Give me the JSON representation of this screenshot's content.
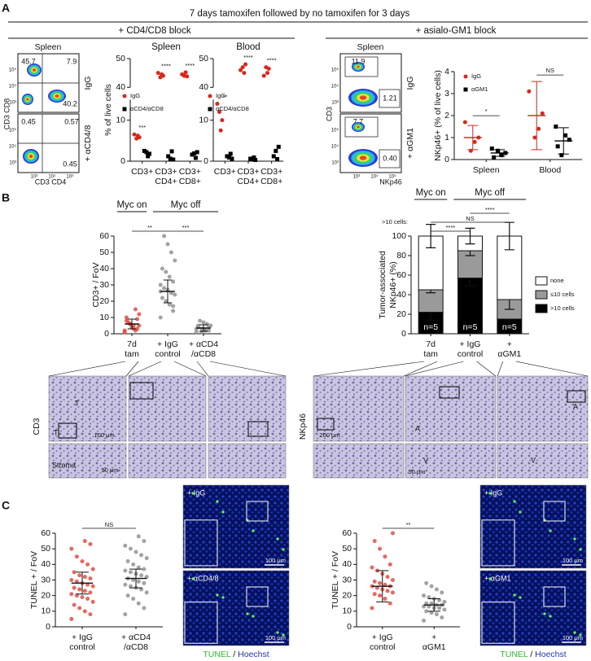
{
  "figure": {
    "panel_labels": [
      "A",
      "B",
      "C"
    ],
    "A": {
      "title": "7 days tamoxifen followed by no tamoxifen for 3 days",
      "left_heading": "+ CD4/CD8 block",
      "right_heading": "+ asialo-GM1 block",
      "flow_left": {
        "tissue": "Spleen",
        "ylabel": "CD3 CD8",
        "xlabel": "CD3 CD4",
        "ticks": [
          "10³",
          "10⁴",
          "10⁵"
        ],
        "rows": [
          {
            "label": "IgG",
            "gates": [
              "45.7",
              "7.9",
              "40.2"
            ]
          },
          {
            "label": "+ αCD4/8",
            "gates": [
              "0.45",
              "0.57",
              "0.45"
            ]
          }
        ]
      },
      "flow_right": {
        "tissue": "Spleen",
        "ylabel": "CD3",
        "xlabel": "NKp46",
        "ticks": [
          "10³",
          "10⁴",
          "10⁵"
        ],
        "rows": [
          {
            "label": "IgG",
            "gates": [
              "11.9",
              "1.21"
            ]
          },
          {
            "label": "+ αGM1",
            "gates": [
              "7.7",
              "0.40"
            ]
          }
        ]
      }
    },
    "B": {
      "images_left": {
        "stain": "CD3",
        "scales": [
          "100 μm",
          "50 μm"
        ],
        "marks": [
          "T",
          "T",
          "Stroma"
        ]
      },
      "images_right": {
        "stain": "NKp46",
        "scales": [
          "200 μm",
          "50 μm"
        ],
        "marks": [
          "A",
          "A",
          "V",
          "V"
        ]
      }
    },
    "C": {
      "images_left": {
        "conditions": [
          "+ IgG",
          "+ αCD4/8"
        ],
        "scales": [
          "100 μm",
          "100 μm"
        ]
      },
      "images_right": {
        "conditions": [
          "+ IgG",
          "+ αGM1"
        ],
        "scales": [
          "100 μm",
          "100 μm"
        ]
      },
      "stain_legend": [
        "TUNEL",
        "/",
        "Hoechst"
      ]
    }
  },
  "chart_data": [
    {
      "type": "dotplot",
      "title": "Spleen",
      "ylabel": "% of live cells",
      "categories": [
        [
          "CD3+"
        ],
        [
          "CD3+",
          "CD4+"
        ],
        [
          "CD3+",
          "CD8+"
        ]
      ],
      "segments": [
        {
          "ylim": [
            0,
            15
          ],
          "yticks": [
            0,
            10
          ]
        },
        {
          "ylim": [
            40,
            50
          ],
          "yticks": [
            40,
            50
          ]
        }
      ],
      "series": [
        {
          "name": "IgG",
          "color": "#d8281e",
          "marker": "circle",
          "values": [
            [
              6.5,
              5.8,
              6.2,
              5.5
            ],
            [
              45,
              44,
              44.5,
              43.5
            ],
            [
              44.5,
              43.8,
              45.2,
              44
            ]
          ]
        },
        {
          "name": "αCD4/αCD8",
          "color": "#000000",
          "marker": "square",
          "values": [
            [
              2.5,
              1.8,
              1.2,
              2.2
            ],
            [
              1.2,
              0.4,
              2.4,
              0.6
            ],
            [
              1.6,
              2.2,
              0.8,
              1.9
            ]
          ]
        }
      ],
      "significance": [
        "***",
        "****",
        "****"
      ]
    },
    {
      "type": "dotplot",
      "title": "Blood",
      "categories": [
        [
          "CD3+"
        ],
        [
          "CD3+",
          "CD4+"
        ],
        [
          "CD3+",
          "CD8+"
        ]
      ],
      "segments": [
        {
          "ylim": [
            0,
            15
          ],
          "yticks": [
            0,
            10
          ]
        },
        {
          "ylim": [
            40,
            50
          ],
          "yticks": [
            40,
            50
          ]
        }
      ],
      "series": [
        {
          "name": "IgG",
          "color": "#d8281e",
          "marker": "circle",
          "values": [
            [
              14,
              10,
              7.5,
              12
            ],
            [
              46,
              48,
              45,
              47
            ],
            [
              44,
              46.5,
              45,
              47
            ]
          ]
        },
        {
          "name": "αCD4/αCD8",
          "color": "#000000",
          "marker": "square",
          "values": [
            [
              1.2,
              0.6,
              1.8,
              0.9
            ],
            [
              0.6,
              0.3,
              0.9,
              0.5
            ],
            [
              1.2,
              3.5,
              0.5,
              2.5
            ]
          ]
        }
      ],
      "significance": [
        "**",
        "****",
        "****"
      ]
    },
    {
      "type": "dotplot",
      "ylabel": "NKp46+ (% of live cells)",
      "categories": [
        [
          "Spleen"
        ],
        [
          "Blood"
        ]
      ],
      "ylim": [
        0,
        4
      ],
      "yticks": [
        0,
        1,
        2,
        3,
        4
      ],
      "series": [
        {
          "name": "IgG",
          "color": "#d8281e",
          "marker": "circle",
          "values": [
            [
              1.7,
              1.0,
              0.8,
              0.4
            ],
            [
              3.1,
              2.1,
              1.4,
              1.0
            ]
          ],
          "means": [
            1.0,
            2.0
          ],
          "errors": [
            0.55,
            1.55
          ]
        },
        {
          "name": "αGM1",
          "color": "#000000",
          "marker": "square",
          "values": [
            [
              0.5,
              0.3,
              0.2,
              0.4,
              0.1
            ],
            [
              1.5,
              0.9,
              1.1,
              0.2,
              0.6
            ]
          ],
          "means": [
            0.3,
            0.85
          ],
          "errors": [
            0.15,
            0.6
          ]
        }
      ],
      "significance": [
        "*",
        "NS"
      ]
    },
    {
      "type": "dotplot",
      "ylabel": "CD3+ / FoV",
      "headers": [
        "Myc on",
        "Myc off"
      ],
      "categories": [
        [
          "7d",
          "tam"
        ],
        [
          "+ IgG",
          "control"
        ],
        [
          "+ αCD4",
          "/αCD8"
        ]
      ],
      "ylim": [
        0,
        60
      ],
      "yticks": [
        0,
        10,
        20,
        30,
        40,
        50,
        60
      ],
      "colors": [
        "#e0433a",
        "#8c8c8c",
        "#8c8c8c"
      ],
      "values": [
        [
          2,
          3,
          5,
          6,
          8,
          12,
          15,
          4,
          7,
          1,
          9,
          3,
          6,
          10,
          5,
          2
        ],
        [
          10,
          14,
          18,
          20,
          22,
          24,
          25,
          27,
          28,
          30,
          32,
          35,
          38,
          40,
          45,
          50,
          55,
          60,
          26,
          17
        ],
        [
          1,
          2,
          2,
          3,
          4,
          5,
          6,
          7,
          8,
          3,
          4,
          2,
          1,
          5
        ]
      ],
      "means": [
        6,
        26,
        3.5
      ],
      "errors": [
        3,
        7,
        2
      ],
      "significance": [
        "**",
        "***"
      ]
    },
    {
      "type": "stacked_bar",
      "ylabel": [
        "Tumor-associated",
        "NKp46+ (%)"
      ],
      "headers": [
        "Myc on",
        "Myc off"
      ],
      "categories": [
        [
          "7d",
          "tam"
        ],
        [
          "+ IgG",
          "control"
        ],
        [
          "+",
          "αGM1"
        ]
      ],
      "ylim": [
        0,
        100
      ],
      "yticks": [
        0,
        20,
        40,
        60,
        80,
        100
      ],
      "series": [
        {
          "name": ">10 cells",
          "color": "#000000",
          "values": [
            22,
            57,
            15
          ],
          "errors": [
            8,
            8,
            7
          ]
        },
        {
          "name": "≤10 cells",
          "color": "#9a9a9a",
          "values": [
            23,
            28,
            20
          ],
          "errors": [
            3,
            5,
            10
          ]
        },
        {
          "name": "none",
          "color": "#ffffff",
          "values": [
            55,
            15,
            65
          ],
          "errors": [
            12,
            8,
            14
          ]
        }
      ],
      "bar_labels": [
        "n=5",
        "n=5",
        "n=5"
      ],
      "significance_label": ">10 cells:",
      "significance": [
        "****",
        "NS",
        "****"
      ]
    },
    {
      "type": "dotplot",
      "ylabel": "TUNEL + / FoV",
      "categories": [
        [
          "+ IgG",
          "control"
        ],
        [
          "+ αCD4",
          "/αCD8"
        ]
      ],
      "ylim": [
        0,
        60
      ],
      "yticks": [
        0,
        10,
        20,
        30,
        40,
        50,
        60
      ],
      "colors": [
        "#e0433a",
        "#8c8c8c"
      ],
      "values": [
        [
          5,
          8,
          10,
          12,
          14,
          16,
          18,
          19,
          20,
          21,
          22,
          23,
          24,
          25,
          26,
          27,
          28,
          29,
          30,
          31,
          32,
          33,
          35,
          37,
          40,
          42,
          45,
          50,
          53,
          55
        ],
        [
          8,
          12,
          15,
          18,
          20,
          22,
          24,
          25,
          26,
          27,
          28,
          29,
          30,
          31,
          32,
          33,
          34,
          35,
          36,
          37,
          38,
          40,
          42,
          44,
          46,
          48,
          50,
          52,
          55,
          58
        ]
      ],
      "means": [
        28,
        31
      ],
      "errors": [
        7,
        6
      ],
      "significance": [
        "NS"
      ]
    },
    {
      "type": "dotplot",
      "ylabel": "TUNEL + / FoV",
      "categories": [
        [
          "+ IgG",
          "control"
        ],
        [
          "+",
          "αGM1"
        ]
      ],
      "ylim": [
        0,
        60
      ],
      "yticks": [
        0,
        10,
        20,
        30,
        40,
        50,
        60
      ],
      "colors": [
        "#e0433a",
        "#8c8c8c"
      ],
      "values": [
        [
          12,
          15,
          18,
          20,
          21,
          22,
          23,
          24,
          25,
          26,
          26,
          27,
          28,
          29,
          30,
          32,
          34,
          36,
          38,
          40,
          45,
          50,
          55,
          60
        ],
        [
          4,
          6,
          8,
          9,
          10,
          11,
          12,
          12,
          13,
          13,
          14,
          14,
          15,
          15,
          16,
          17,
          18,
          19,
          20,
          22,
          24,
          26,
          28
        ]
      ],
      "means": [
        26,
        14
      ],
      "errors": [
        10,
        4
      ],
      "significance": [
        "**"
      ]
    }
  ]
}
